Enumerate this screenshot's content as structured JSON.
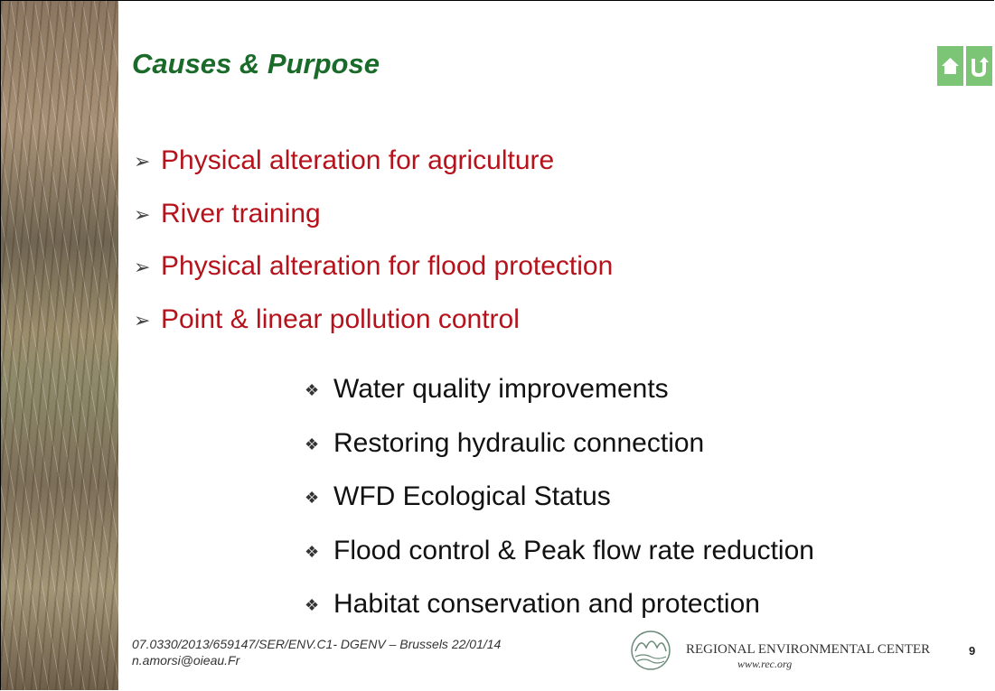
{
  "header": {
    "title": "Causes & Purpose"
  },
  "causes": [
    "Physical alteration for agriculture",
    "River training",
    "Physical alteration for flood protection",
    "Point & linear pollution control"
  ],
  "purposes": [
    "Water quality improvements",
    "Restoring hydraulic connection",
    "WFD Ecological Status",
    "Flood control & Peak flow rate reduction",
    "Habitat conservation and protection"
  ],
  "footer": {
    "reference": "07.0330/2013/659147/SER/ENV.C1- DGENV – Brussels 22/01/14",
    "email": "n.amorsi@oieau.Fr",
    "organization": "REGIONAL ENVIRONMENTAL CENTER",
    "website": "www.rec.org",
    "page_number": "9"
  }
}
